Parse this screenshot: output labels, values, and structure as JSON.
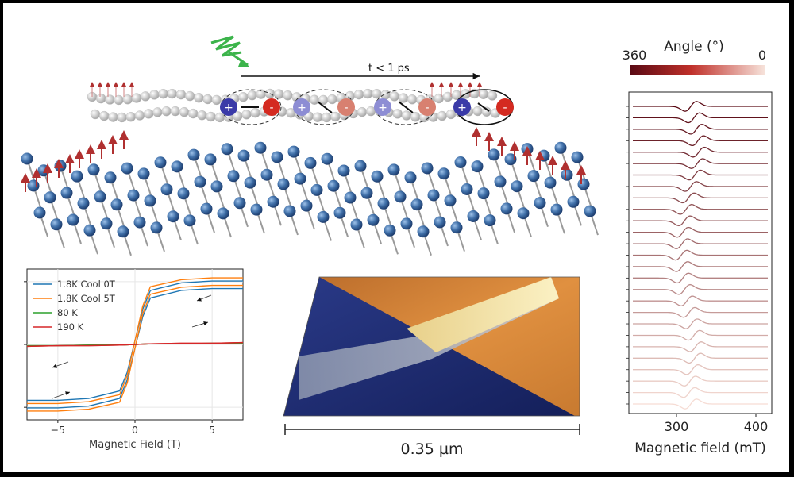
{
  "illustration": {
    "pulse_label": "t < 1 ps",
    "charge_plus": "+",
    "charge_minus": "-"
  },
  "colors": {
    "lattice_sphere": "#3f6fa8",
    "spin_arrow": "#b03030",
    "plus_charge": "#3a3aa8",
    "minus_charge": "#d42a20",
    "laser": "#3cb44b",
    "afm_blue": "#1c2a6e",
    "afm_orange": "#d88a3a",
    "afm_yellow": "#f1e0a0"
  },
  "afm": {
    "scale_label": "0.35 µm"
  },
  "chart_data": [
    {
      "type": "line",
      "title": "",
      "xlabel": "Magnetic Field (T)",
      "ylabel": "",
      "xlim": [
        -7,
        7
      ],
      "ylim": [
        -1.2,
        1.2
      ],
      "xticks": [
        "−5",
        "0",
        "5"
      ],
      "grid": true,
      "legend_position": "top-left",
      "series": [
        {
          "name": "1.8K Cool 0T",
          "color": "#1f77b4",
          "x": [
            -7,
            -5,
            -3,
            -1,
            -0.5,
            0,
            0.5,
            1,
            3,
            5,
            7
          ],
          "y": [
            -0.95,
            -0.95,
            -0.92,
            -0.8,
            -0.5,
            0,
            0.5,
            0.8,
            0.92,
            0.95,
            0.95
          ]
        },
        {
          "name": "1.8K Cool 5T",
          "color": "#ff7f0e",
          "x": [
            -7,
            -5,
            -3,
            -1,
            -0.5,
            0,
            0.5,
            1,
            3,
            5,
            7
          ],
          "y": [
            -1.0,
            -1.0,
            -0.97,
            -0.86,
            -0.55,
            0,
            0.55,
            0.86,
            0.97,
            1.0,
            1.0
          ]
        },
        {
          "name": "80 K",
          "color": "#2ca02c",
          "x": [
            -7,
            -5,
            -3,
            -1,
            0,
            1,
            3,
            5,
            7
          ],
          "y": [
            -0.02,
            -0.02,
            -0.01,
            -0.01,
            0,
            0.01,
            0.01,
            0.02,
            0.02
          ]
        },
        {
          "name": "190 K",
          "color": "#d62728",
          "x": [
            -7,
            -5,
            -3,
            -1,
            0,
            1,
            3,
            5,
            7
          ],
          "y": [
            -0.03,
            -0.02,
            -0.02,
            -0.01,
            0,
            0.01,
            0.02,
            0.02,
            0.03
          ]
        }
      ]
    },
    {
      "type": "line",
      "title": "",
      "xlabel": "Magnetic field (mT)",
      "ylabel": "",
      "xlim": [
        240,
        420
      ],
      "xticks": [
        "300",
        "400"
      ],
      "colorbar": {
        "title": "Angle (°)",
        "min_label": "360",
        "max_label": "0",
        "color_dark": "#5a0a14",
        "color_light": "#f6dcd4"
      },
      "series_count": 27,
      "series_offsets_angle_deg": [
        360,
        346,
        332,
        318,
        305,
        291,
        277,
        263,
        249,
        235,
        222,
        208,
        194,
        180,
        166,
        152,
        138,
        125,
        111,
        97,
        83,
        69,
        55,
        42,
        28,
        14,
        0
      ],
      "resonance_center_mT": [
        318,
        322,
        325,
        327,
        328,
        326,
        323,
        318,
        315,
        312,
        310,
        308,
        307,
        306,
        307,
        308,
        310,
        313,
        316,
        319,
        322,
        324,
        323,
        320,
        317,
        316,
        318
      ]
    }
  ]
}
